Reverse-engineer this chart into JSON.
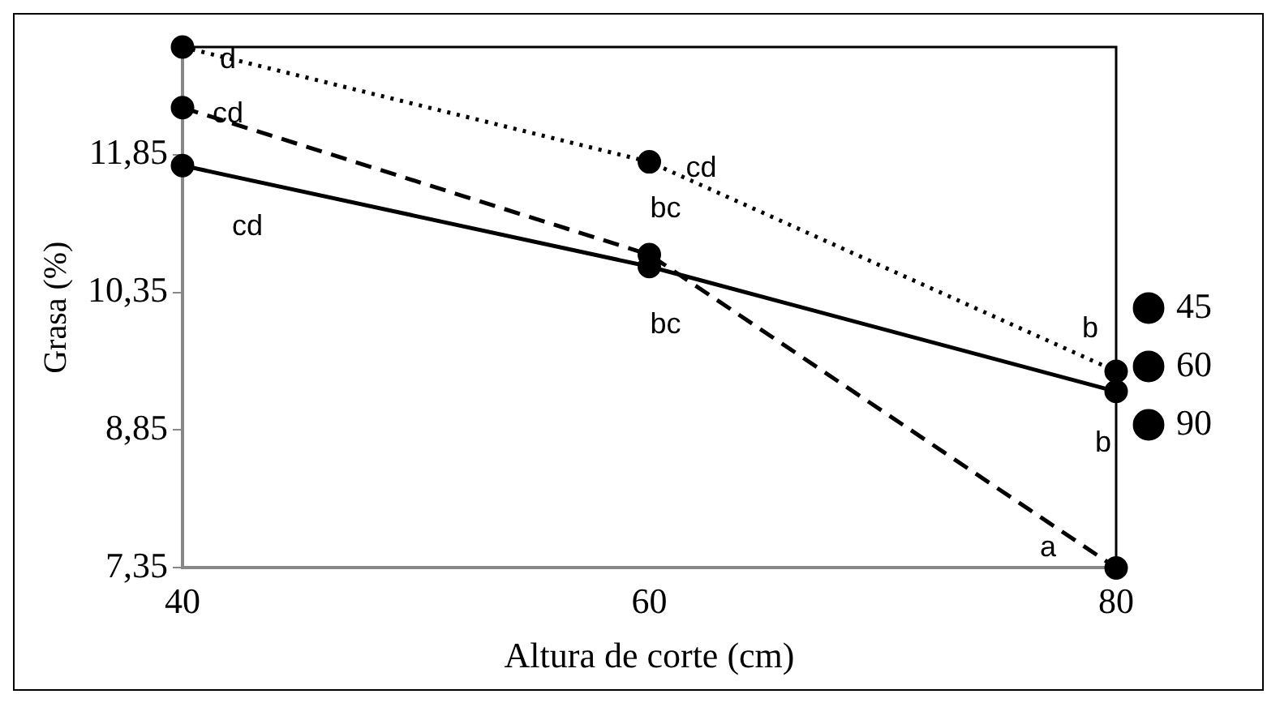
{
  "chart_data": {
    "type": "line",
    "xlabel": "Altura de corte (cm)",
    "ylabel": "Grasa (%)",
    "x": [
      40,
      60,
      80
    ],
    "xlim": [
      40,
      80
    ],
    "xticks": [
      40,
      60,
      80
    ],
    "ylim": [
      7.35,
      13.02
    ],
    "yticks": [
      {
        "value": 7.35,
        "label": "7,35"
      },
      {
        "value": 8.85,
        "label": "8,85"
      },
      {
        "value": 10.35,
        "label": "10,35"
      },
      {
        "value": 11.85,
        "label": "11,85"
      }
    ],
    "series": [
      {
        "name": "45",
        "color": "#000000",
        "line_style": "solid",
        "values": [
          11.73,
          10.63,
          9.27
        ]
      },
      {
        "name": "60",
        "color": "#000000",
        "line_style": "dashed",
        "values": [
          12.36,
          10.76,
          7.35
        ]
      },
      {
        "name": "90",
        "color": "#000000",
        "line_style": "dotted",
        "values": [
          13.02,
          11.77,
          9.49
        ]
      }
    ],
    "marker": "circle",
    "grid": false,
    "legend": "right",
    "annotations": [
      {
        "text": "cd",
        "x": 40,
        "y": 11.73
      },
      {
        "text": "bc",
        "x": 60,
        "y": 10.63
      },
      {
        "text": "b",
        "x": 80,
        "y": 9.27
      },
      {
        "text": "cd",
        "x": 40,
        "y": 12.36
      },
      {
        "text": "bc",
        "x": 60,
        "y": 10.76
      },
      {
        "text": "a",
        "x": 80,
        "y": 7.35
      },
      {
        "text": "d",
        "x": 40,
        "y": 13.02
      },
      {
        "text": "cd",
        "x": 60,
        "y": 11.77
      },
      {
        "text": "b",
        "x": 80,
        "y": 9.49
      }
    ]
  }
}
